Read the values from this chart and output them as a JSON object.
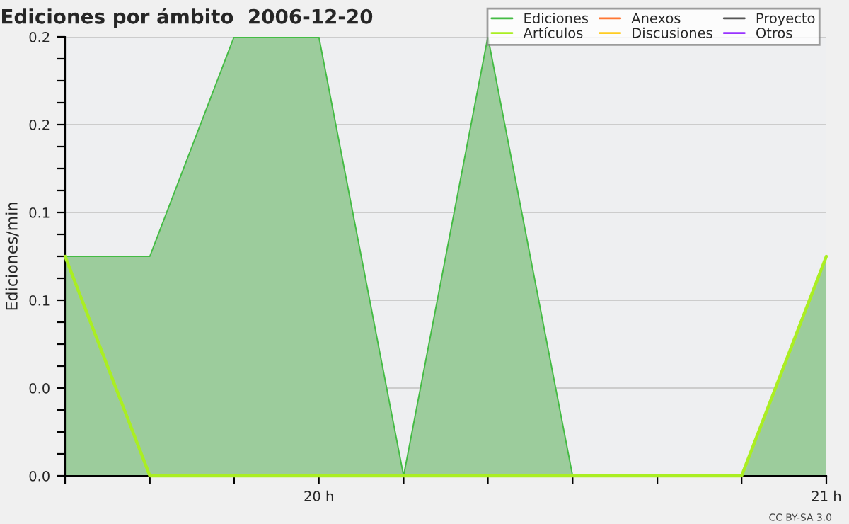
{
  "chart_data": {
    "type": "area",
    "title": "Ediciones por ámbito  2006-12-20",
    "ylabel": "Ediciones/min",
    "x": [
      19.5,
      19.667,
      19.833,
      20,
      20.167,
      20.333,
      20.5,
      20.667,
      20.833,
      21
    ],
    "series": [
      {
        "name": "Ediciones",
        "color": "#44bb44",
        "values": [
          0.125,
          0.125,
          0.25,
          0.25,
          0,
          0.25,
          0,
          0,
          0,
          0.125
        ]
      },
      {
        "name": "Artículos",
        "color": "#aaee22",
        "type": "line",
        "values": [
          0.125,
          0,
          0,
          0,
          0,
          0,
          0,
          0,
          0,
          0.125
        ]
      },
      {
        "name": "Anexos",
        "color": "#ff7733",
        "type": "line",
        "values": [
          null,
          null,
          null,
          null,
          null,
          null,
          null,
          null,
          null,
          null
        ]
      },
      {
        "name": "Discusiones",
        "color": "#ffcc22",
        "type": "line",
        "values": [
          null,
          null,
          null,
          null,
          null,
          null,
          null,
          null,
          null,
          null
        ]
      },
      {
        "name": "Proyecto",
        "color": "#555555",
        "type": "line",
        "values": [
          null,
          null,
          null,
          null,
          null,
          null,
          null,
          null,
          null,
          null
        ]
      },
      {
        "name": "Otros",
        "color": "#9933ff",
        "type": "line",
        "values": [
          null,
          null,
          null,
          null,
          null,
          null,
          null,
          null,
          null,
          null
        ]
      }
    ],
    "xlim": [
      19.5,
      21
    ],
    "xticks": [
      {
        "value": 19.5,
        "label": null
      },
      {
        "value": 19.667,
        "label": null
      },
      {
        "value": 19.833,
        "label": null
      },
      {
        "value": 20,
        "label": "20 h"
      },
      {
        "value": 20.167,
        "label": null
      },
      {
        "value": 20.333,
        "label": null
      },
      {
        "value": 20.5,
        "label": null
      },
      {
        "value": 20.667,
        "label": null
      },
      {
        "value": 20.833,
        "label": null
      },
      {
        "value": 21,
        "label": "21 h"
      }
    ],
    "ylim": [
      0,
      0.25
    ],
    "yticks": [
      {
        "value": 0,
        "label": "0.0"
      },
      {
        "value": 0.0125,
        "label": null
      },
      {
        "value": 0.025,
        "label": null
      },
      {
        "value": 0.0375,
        "label": null
      },
      {
        "value": 0.05,
        "label": "0.0"
      },
      {
        "value": 0.0625,
        "label": null
      },
      {
        "value": 0.075,
        "label": null
      },
      {
        "value": 0.0875,
        "label": null
      },
      {
        "value": 0.1,
        "label": "0.1"
      },
      {
        "value": 0.1125,
        "label": null
      },
      {
        "value": 0.125,
        "label": null
      },
      {
        "value": 0.1375,
        "label": null
      },
      {
        "value": 0.15,
        "label": "0.1"
      },
      {
        "value": 0.1625,
        "label": null
      },
      {
        "value": 0.175,
        "label": null
      },
      {
        "value": 0.1875,
        "label": null
      },
      {
        "value": 0.2,
        "label": "0.2"
      },
      {
        "value": 0.2125,
        "label": null
      },
      {
        "value": 0.225,
        "label": null
      },
      {
        "value": 0.2375,
        "label": null
      },
      {
        "value": 0.25,
        "label": "0.2"
      }
    ],
    "grid": "y",
    "legend": "top right",
    "annotations": [
      "CC BY-SA 3.0"
    ]
  }
}
